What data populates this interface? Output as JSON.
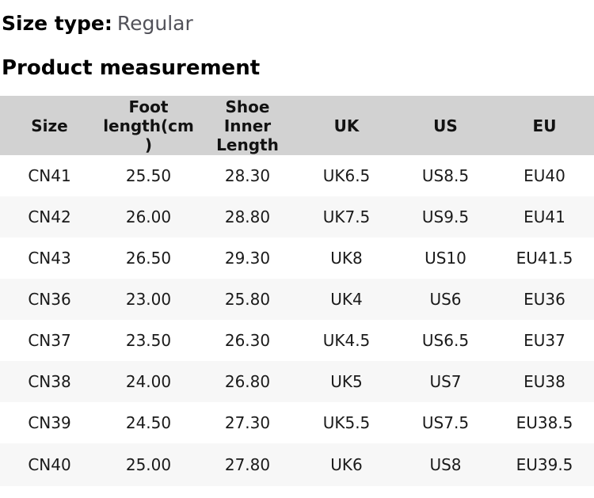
{
  "size_type": {
    "label": "Size type:",
    "value": "Regular"
  },
  "section_title": "Product measurement",
  "table": {
    "headers": [
      "Size",
      "Foot\nlength(cm\n)",
      "Shoe\nInner\nLength",
      "UK",
      "US",
      "EU"
    ],
    "rows": [
      [
        "CN41",
        "25.50",
        "28.30",
        "UK6.5",
        "US8.5",
        "EU40"
      ],
      [
        "CN42",
        "26.00",
        "28.80",
        "UK7.5",
        "US9.5",
        "EU41"
      ],
      [
        "CN43",
        "26.50",
        "29.30",
        "UK8",
        "US10",
        "EU41.5"
      ],
      [
        "CN36",
        "23.00",
        "25.80",
        "UK4",
        "US6",
        "EU36"
      ],
      [
        "CN37",
        "23.50",
        "26.30",
        "UK4.5",
        "US6.5",
        "EU37"
      ],
      [
        "CN38",
        "24.00",
        "26.80",
        "UK5",
        "US7",
        "EU38"
      ],
      [
        "CN39",
        "24.50",
        "27.30",
        "UK5.5",
        "US7.5",
        "EU38.5"
      ],
      [
        "CN40",
        "25.00",
        "27.80",
        "UK6",
        "US8",
        "EU39.5"
      ]
    ]
  },
  "colors": {
    "header_bg": "#d2d2d2",
    "alt_row_bg": "#f7f7f7",
    "muted_text": "#52525a",
    "text": "#1a1a1a"
  }
}
